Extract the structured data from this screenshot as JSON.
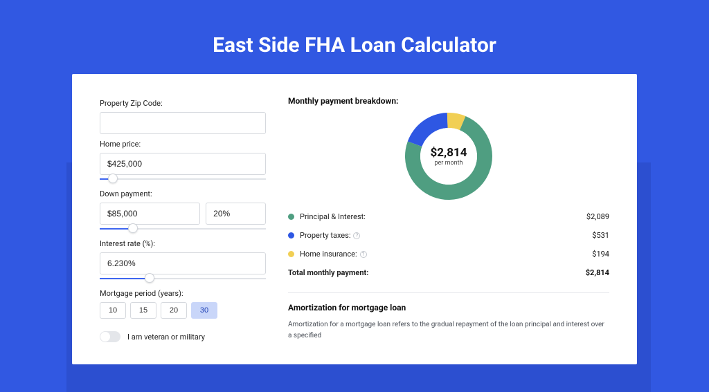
{
  "page": {
    "title": "East Side FHA Loan Calculator",
    "bg_color": "#3158e2",
    "shadow_bg": "#2c4fd0"
  },
  "form": {
    "zip": {
      "label": "Property Zip Code:",
      "value": ""
    },
    "price": {
      "label": "Home price:",
      "value": "$425,000",
      "slider_pct": 8
    },
    "down": {
      "label": "Down payment:",
      "value": "$85,000",
      "pct": "20%",
      "slider_pct": 20
    },
    "rate": {
      "label": "Interest rate (%):",
      "value": "6.230%",
      "slider_pct": 30
    },
    "period": {
      "label": "Mortgage period (years):",
      "options": [
        "10",
        "15",
        "20",
        "30"
      ],
      "active_index": 3
    },
    "veteran": {
      "label": "I am veteran or military",
      "on": false
    }
  },
  "breakdown": {
    "title": "Monthly payment breakdown:",
    "donut": {
      "center_amount": "$2,814",
      "center_sub": "per month",
      "segments": [
        {
          "label": "Principal & Interest",
          "value": 2089,
          "color": "#4f9e81",
          "pct": 74.2
        },
        {
          "label": "Property taxes",
          "value": 531,
          "color": "#2e57e3",
          "pct": 18.9
        },
        {
          "label": "Home insurance",
          "value": 194,
          "color": "#f1cf54",
          "pct": 6.9
        }
      ],
      "thickness": 22,
      "bg_color": "#ffffff"
    },
    "rows": [
      {
        "label": "Principal & Interest:",
        "value": "$2,089",
        "color": "#4f9e81",
        "has_info": false
      },
      {
        "label": "Property taxes:",
        "value": "$531",
        "color": "#2e57e3",
        "has_info": true
      },
      {
        "label": "Home insurance:",
        "value": "$194",
        "color": "#f1cf54",
        "has_info": true
      }
    ],
    "total": {
      "label": "Total monthly payment:",
      "value": "$2,814"
    }
  },
  "amortization": {
    "title": "Amortization for mortgage loan",
    "text": "Amortization for a mortgage loan refers to the gradual repayment of the loan principal and interest over a specified"
  }
}
